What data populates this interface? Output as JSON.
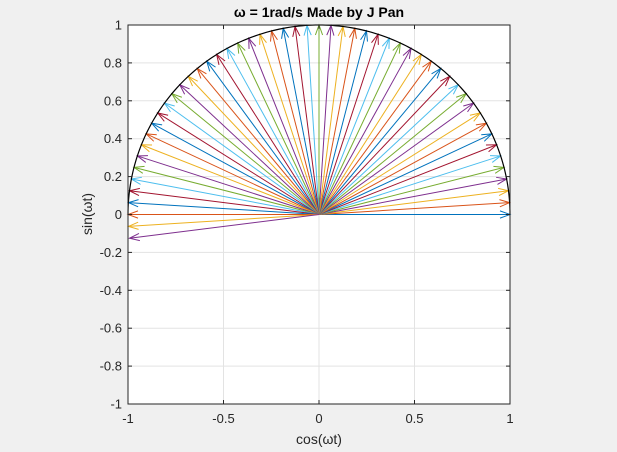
{
  "chart_data": {
    "type": "line",
    "title": "ω = 1rad/s   Made by J Pan",
    "xlabel": "cos(ωt)",
    "ylabel": "sin(ωt)",
    "xlim": [
      -1,
      1
    ],
    "ylim": [
      -1,
      1
    ],
    "grid": true,
    "xticks": [
      -1,
      -0.5,
      0,
      0.5,
      1
    ],
    "xtick_labels": [
      "-1",
      "-0.5",
      "0",
      "0.5",
      "1"
    ],
    "yticks": [
      -1,
      -0.8,
      -0.6,
      -0.4,
      -0.2,
      0,
      0.2,
      0.4,
      0.6,
      0.8,
      1
    ],
    "ytick_labels": [
      "-1",
      "-0.8",
      "-0.6",
      "-0.4",
      "-0.2",
      "0",
      "0.2",
      "0.4",
      "0.6",
      "0.8",
      "1"
    ],
    "circle": {
      "radius": 1,
      "theta_start_deg": 0,
      "theta_end_deg": 180,
      "color": "#000000"
    },
    "arrows": {
      "origin": [
        0,
        0
      ],
      "length": 1,
      "angle_start_deg": 0,
      "angle_step_deg": 3.6,
      "count": 53,
      "colors": [
        "#0072bd",
        "#d95319",
        "#edb120",
        "#7e2f8e",
        "#77ac30",
        "#4dbeee",
        "#a2142f"
      ]
    }
  }
}
